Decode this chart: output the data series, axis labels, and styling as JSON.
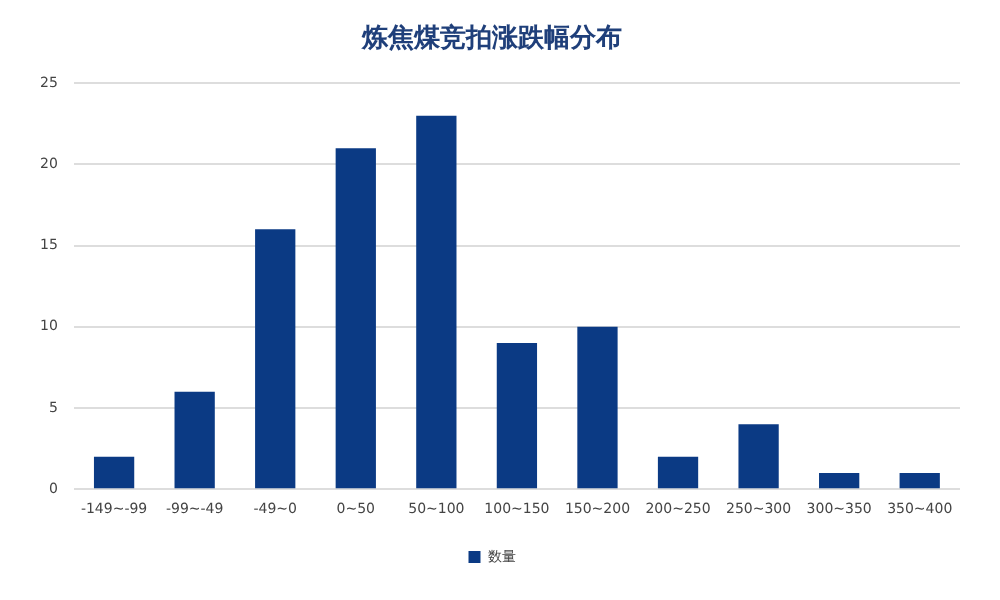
{
  "chart_data": {
    "type": "bar",
    "title": "炼焦煤竞拍涨跌幅分布",
    "categories": [
      "-149~-99",
      "-99~-49",
      "-49~0",
      "0~50",
      "50~100",
      "100~150",
      "150~200",
      "200~250",
      "250~300",
      "300~350",
      "350~400"
    ],
    "series": [
      {
        "name": "数量",
        "color": "#0b3a84",
        "values": [
          2,
          6,
          16,
          21,
          23,
          9,
          10,
          2,
          4,
          1,
          1
        ]
      }
    ],
    "ylim": [
      0,
      25
    ],
    "yticks": [
      0,
      5,
      10,
      15,
      20,
      25
    ],
    "grid": "y",
    "legend": "bottom"
  }
}
